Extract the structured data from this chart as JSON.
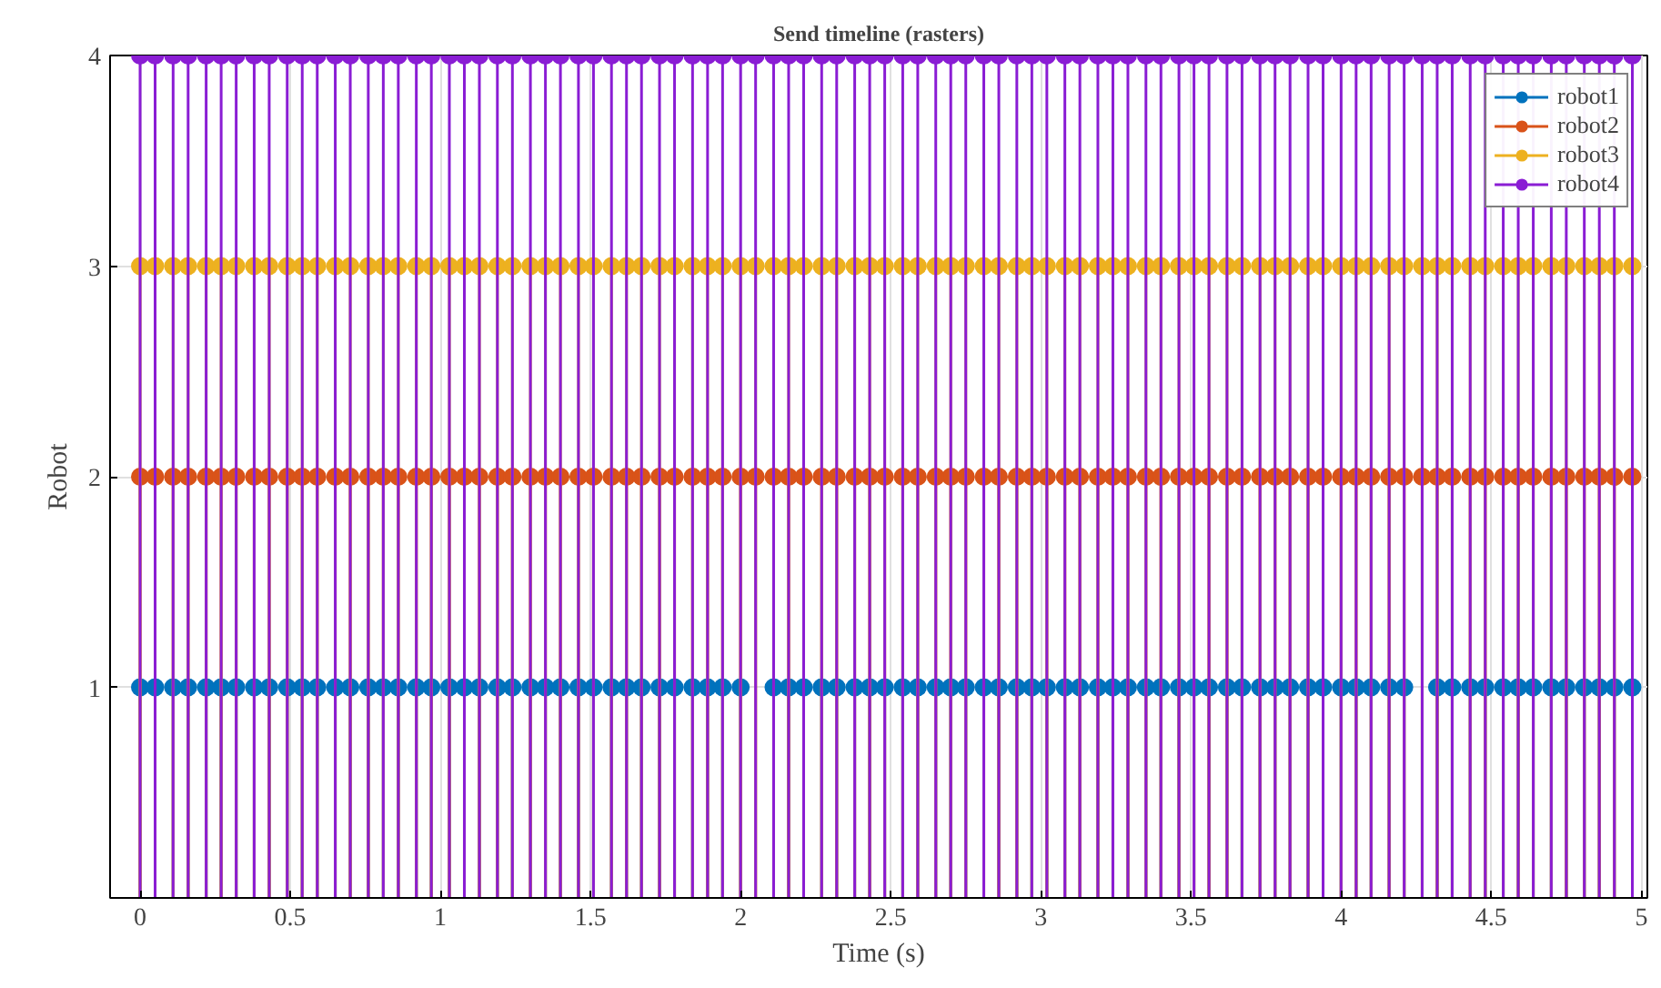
{
  "chart_data": {
    "type": "lollipop",
    "title": "Send timeline (rasters)",
    "xlabel": "Time (s)",
    "ylabel": "Robot",
    "xlim": [
      -0.1,
      5.02
    ],
    "xticks": [
      0,
      0.5,
      1,
      1.5,
      2,
      2.5,
      3,
      3.5,
      4,
      4.5,
      5
    ],
    "ylim": [
      0,
      4
    ],
    "yticks": [
      1,
      2,
      3,
      4
    ],
    "grid": true,
    "legend": "top right",
    "marker": "circle",
    "series": [
      {
        "name": "robot1",
        "color": "#0072bd",
        "x": [
          0,
          0.05,
          0.11,
          0.16,
          0.22,
          0.27,
          0.32,
          0.38,
          0.43,
          0.49,
          0.54,
          0.59,
          0.65,
          0.7,
          0.76,
          0.81,
          0.86,
          0.92,
          0.97,
          1.03,
          1.08,
          1.13,
          1.19,
          1.24,
          1.3,
          1.35,
          1.4,
          1.46,
          1.51,
          1.57,
          1.62,
          1.67,
          1.73,
          1.78,
          1.84,
          1.89,
          1.94,
          2.0,
          2.11,
          2.16,
          2.21,
          2.27,
          2.32,
          2.38,
          2.43,
          2.48,
          2.54,
          2.59,
          2.65,
          2.7,
          2.75,
          2.81,
          2.86,
          2.92,
          2.97,
          3.02,
          3.08,
          3.13,
          3.19,
          3.24,
          3.29,
          3.35,
          3.4,
          3.46,
          3.51,
          3.56,
          3.62,
          3.67,
          3.73,
          3.78,
          3.83,
          3.89,
          3.94,
          4.0,
          4.05,
          4.1,
          4.16,
          4.21,
          4.32,
          4.37,
          4.43,
          4.48,
          4.54,
          4.59,
          4.64,
          4.7,
          4.75,
          4.81,
          4.86,
          4.91,
          4.97
        ],
        "values": [
          1,
          1,
          1,
          1,
          1,
          1,
          1,
          1,
          1,
          1,
          1,
          1,
          1,
          1,
          1,
          1,
          1,
          1,
          1,
          1,
          1,
          1,
          1,
          1,
          1,
          1,
          1,
          1,
          1,
          1,
          1,
          1,
          1,
          1,
          1,
          1,
          1,
          1,
          1,
          1,
          1,
          1,
          1,
          1,
          1,
          1,
          1,
          1,
          1,
          1,
          1,
          1,
          1,
          1,
          1,
          1,
          1,
          1,
          1,
          1,
          1,
          1,
          1,
          1,
          1,
          1,
          1,
          1,
          1,
          1,
          1,
          1,
          1,
          1,
          1,
          1,
          1,
          1,
          1,
          1,
          1,
          1,
          1,
          1,
          1,
          1,
          1,
          1,
          1,
          1,
          1
        ]
      },
      {
        "name": "robot2",
        "color": "#d95319",
        "x": [
          0,
          0.05,
          0.11,
          0.16,
          0.22,
          0.27,
          0.32,
          0.38,
          0.43,
          0.49,
          0.54,
          0.59,
          0.65,
          0.7,
          0.76,
          0.81,
          0.86,
          0.92,
          0.97,
          1.03,
          1.08,
          1.13,
          1.19,
          1.24,
          1.3,
          1.35,
          1.4,
          1.46,
          1.51,
          1.57,
          1.62,
          1.67,
          1.73,
          1.78,
          1.84,
          1.89,
          1.94,
          2.0,
          2.05,
          2.11,
          2.16,
          2.21,
          2.27,
          2.32,
          2.38,
          2.43,
          2.48,
          2.54,
          2.59,
          2.65,
          2.7,
          2.75,
          2.81,
          2.86,
          2.92,
          2.97,
          3.02,
          3.08,
          3.13,
          3.19,
          3.24,
          3.29,
          3.35,
          3.4,
          3.46,
          3.51,
          3.56,
          3.62,
          3.67,
          3.73,
          3.78,
          3.83,
          3.89,
          3.94,
          4.0,
          4.05,
          4.1,
          4.16,
          4.21,
          4.27,
          4.32,
          4.37,
          4.43,
          4.48,
          4.54,
          4.59,
          4.64,
          4.7,
          4.75,
          4.81,
          4.86,
          4.91,
          4.97
        ],
        "values": [
          2,
          2,
          2,
          2,
          2,
          2,
          2,
          2,
          2,
          2,
          2,
          2,
          2,
          2,
          2,
          2,
          2,
          2,
          2,
          2,
          2,
          2,
          2,
          2,
          2,
          2,
          2,
          2,
          2,
          2,
          2,
          2,
          2,
          2,
          2,
          2,
          2,
          2,
          2,
          2,
          2,
          2,
          2,
          2,
          2,
          2,
          2,
          2,
          2,
          2,
          2,
          2,
          2,
          2,
          2,
          2,
          2,
          2,
          2,
          2,
          2,
          2,
          2,
          2,
          2,
          2,
          2,
          2,
          2,
          2,
          2,
          2,
          2,
          2,
          2,
          2,
          2,
          2,
          2,
          2,
          2,
          2,
          2,
          2,
          2,
          2,
          2,
          2,
          2,
          2,
          2,
          2,
          2
        ]
      },
      {
        "name": "robot3",
        "color": "#edb120",
        "x": [
          0,
          0.05,
          0.11,
          0.16,
          0.22,
          0.27,
          0.32,
          0.38,
          0.43,
          0.49,
          0.54,
          0.59,
          0.65,
          0.7,
          0.76,
          0.81,
          0.86,
          0.92,
          0.97,
          1.03,
          1.08,
          1.13,
          1.19,
          1.24,
          1.3,
          1.35,
          1.4,
          1.46,
          1.51,
          1.57,
          1.62,
          1.67,
          1.73,
          1.78,
          1.84,
          1.89,
          1.94,
          2.0,
          2.05,
          2.11,
          2.16,
          2.21,
          2.27,
          2.32,
          2.38,
          2.43,
          2.48,
          2.54,
          2.59,
          2.65,
          2.7,
          2.75,
          2.81,
          2.86,
          2.92,
          2.97,
          3.02,
          3.08,
          3.13,
          3.19,
          3.24,
          3.29,
          3.35,
          3.4,
          3.46,
          3.51,
          3.56,
          3.62,
          3.67,
          3.73,
          3.78,
          3.83,
          3.89,
          3.94,
          4.0,
          4.05,
          4.1,
          4.16,
          4.21,
          4.27,
          4.32,
          4.37,
          4.43,
          4.48,
          4.54,
          4.59,
          4.64,
          4.7,
          4.75,
          4.81,
          4.86,
          4.91,
          4.97
        ],
        "values": [
          3,
          3,
          3,
          3,
          3,
          3,
          3,
          3,
          3,
          3,
          3,
          3,
          3,
          3,
          3,
          3,
          3,
          3,
          3,
          3,
          3,
          3,
          3,
          3,
          3,
          3,
          3,
          3,
          3,
          3,
          3,
          3,
          3,
          3,
          3,
          3,
          3,
          3,
          3,
          3,
          3,
          3,
          3,
          3,
          3,
          3,
          3,
          3,
          3,
          3,
          3,
          3,
          3,
          3,
          3,
          3,
          3,
          3,
          3,
          3,
          3,
          3,
          3,
          3,
          3,
          3,
          3,
          3,
          3,
          3,
          3,
          3,
          3,
          3,
          3,
          3,
          3,
          3,
          3,
          3,
          3,
          3,
          3,
          3,
          3,
          3,
          3,
          3,
          3,
          3,
          3,
          3,
          3
        ]
      },
      {
        "name": "robot4",
        "color": "#8a1dd4",
        "x": [
          0,
          0.05,
          0.11,
          0.16,
          0.22,
          0.27,
          0.32,
          0.38,
          0.43,
          0.49,
          0.54,
          0.59,
          0.65,
          0.7,
          0.76,
          0.81,
          0.86,
          0.92,
          0.97,
          1.03,
          1.08,
          1.13,
          1.19,
          1.24,
          1.3,
          1.35,
          1.4,
          1.46,
          1.51,
          1.57,
          1.62,
          1.67,
          1.73,
          1.78,
          1.84,
          1.89,
          1.94,
          2.0,
          2.05,
          2.11,
          2.16,
          2.21,
          2.27,
          2.32,
          2.38,
          2.43,
          2.48,
          2.54,
          2.59,
          2.65,
          2.7,
          2.75,
          2.81,
          2.86,
          2.92,
          2.97,
          3.02,
          3.08,
          3.13,
          3.19,
          3.24,
          3.29,
          3.35,
          3.4,
          3.46,
          3.51,
          3.56,
          3.62,
          3.67,
          3.73,
          3.78,
          3.83,
          3.89,
          3.94,
          4.0,
          4.05,
          4.1,
          4.16,
          4.21,
          4.27,
          4.32,
          4.37,
          4.43,
          4.48,
          4.54,
          4.59,
          4.64,
          4.7,
          4.75,
          4.81,
          4.86,
          4.91,
          4.97
        ],
        "values": [
          4,
          4,
          4,
          4,
          4,
          4,
          4,
          4,
          4,
          4,
          4,
          4,
          4,
          4,
          4,
          4,
          4,
          4,
          4,
          4,
          4,
          4,
          4,
          4,
          4,
          4,
          4,
          4,
          4,
          4,
          4,
          4,
          4,
          4,
          4,
          4,
          4,
          4,
          4,
          4,
          4,
          4,
          4,
          4,
          4,
          4,
          4,
          4,
          4,
          4,
          4,
          4,
          4,
          4,
          4,
          4,
          4,
          4,
          4,
          4,
          4,
          4,
          4,
          4,
          4,
          4,
          4,
          4,
          4,
          4,
          4,
          4,
          4,
          4,
          4,
          4,
          4,
          4,
          4,
          4,
          4,
          4,
          4,
          4,
          4,
          4,
          4,
          4,
          4,
          4,
          4,
          4,
          4
        ]
      }
    ]
  }
}
